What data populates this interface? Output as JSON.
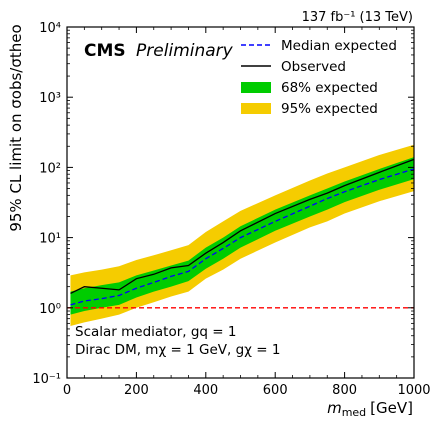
{
  "chart_data": {
    "type": "area",
    "lumi_label": "137 fb⁻¹ (13 TeV)",
    "cms_bold": "CMS",
    "cms_italic": "Preliminary",
    "xlabel_main": "m",
    "xlabel_sub": "med",
    "xlabel_unit": "[GeV]",
    "ylabel": "95% CL limit on σobs/σtheo",
    "xlim": [
      0,
      1000
    ],
    "ylim": [
      0.1,
      10000
    ],
    "yscale": "log",
    "x_ticks": [
      0,
      200,
      400,
      600,
      800,
      1000
    ],
    "y_ticks": [
      {
        "value": 0.1,
        "label": "10⁻¹"
      },
      {
        "value": 1,
        "label": "10⁰"
      },
      {
        "value": 10,
        "label": "10¹"
      },
      {
        "value": 100,
        "label": "10²"
      },
      {
        "value": 1000,
        "label": "10³"
      },
      {
        "value": 10000,
        "label": "10⁴"
      }
    ],
    "reference_line": {
      "y": 1,
      "color": "#ff0000"
    },
    "annotation_line1": "Scalar mediator, gq = 1",
    "annotation_line2": "Dirac DM, mχ = 1 GeV, gχ = 1",
    "legend_position": "top-right",
    "legend": [
      {
        "label": "Median expected",
        "kind": "dashed",
        "color": "#0000ff"
      },
      {
        "label": "Observed",
        "kind": "line",
        "color": "#000000"
      },
      {
        "label": "68% expected",
        "kind": "band",
        "color": "#00cc00"
      },
      {
        "label": "95% expected",
        "kind": "band",
        "color": "#f5cc00"
      }
    ],
    "x": [
      10,
      50,
      100,
      150,
      200,
      250,
      300,
      350,
      400,
      450,
      500,
      600,
      700,
      750,
      800,
      900,
      1000
    ],
    "median": [
      1.1,
      1.25,
      1.35,
      1.5,
      1.9,
      2.3,
      2.8,
      3.3,
      5.0,
      7.0,
      10.0,
      17.0,
      28.0,
      36.0,
      45.0,
      67.0,
      95.0
    ],
    "observed": [
      1.6,
      2.0,
      1.9,
      1.8,
      2.6,
      3.0,
      3.7,
      4.0,
      6.0,
      8.5,
      12.5,
      22.0,
      35.0,
      43.0,
      55.0,
      85.0,
      130.0
    ],
    "band68_low": [
      0.8,
      0.9,
      1.0,
      1.1,
      1.4,
      1.7,
      2.0,
      2.4,
      3.6,
      5.0,
      7.2,
      12.5,
      20.0,
      25.0,
      32.0,
      48.0,
      68.0
    ],
    "band68_high": [
      1.7,
      1.9,
      2.1,
      2.3,
      2.9,
      3.4,
      4.0,
      4.7,
      7.2,
      10.0,
      14.5,
      25.0,
      40.0,
      50.0,
      63.0,
      95.0,
      140.0
    ],
    "band95_low": [
      0.55,
      0.62,
      0.7,
      0.8,
      1.0,
      1.2,
      1.45,
      1.7,
      2.6,
      3.5,
      5.0,
      8.5,
      14.0,
      17.0,
      22.0,
      33.0,
      46.0
    ],
    "band95_high": [
      2.9,
      3.2,
      3.5,
      3.9,
      4.8,
      5.6,
      6.6,
      7.8,
      12.0,
      17.0,
      24.0,
      40.0,
      65.0,
      82.0,
      100.0,
      150.0,
      210.0
    ],
    "colors": {
      "band68": "#00cc00",
      "band95": "#f5cc00",
      "median": "#0000ff",
      "observed": "#000000"
    }
  }
}
